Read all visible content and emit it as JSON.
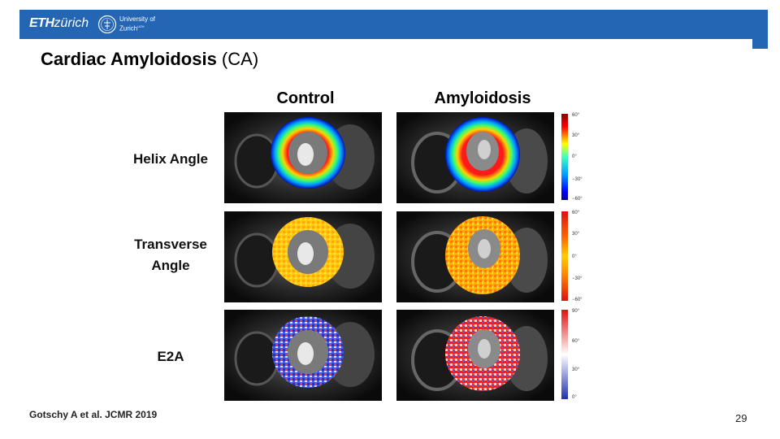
{
  "header": {
    "eth_bold": "ETH",
    "eth_italic": "zürich",
    "uzh_line1": "University of",
    "uzh_line2": "Zurich",
    "uzh_superscript": "UZH"
  },
  "slide": {
    "title_bold": "Cardiac Amyloidosis",
    "title_rest": " (CA)",
    "columns": [
      "Control",
      "Amyloidosis"
    ],
    "rows": [
      {
        "label_line1": "Helix Angle",
        "label_line2": ""
      },
      {
        "label_line1": "Transverse",
        "label_line2": "Angle"
      },
      {
        "label_line1": "E2A",
        "label_line2": ""
      }
    ],
    "colorbars": [
      {
        "name": "helix",
        "ticks": [
          "60°",
          "30°",
          "0°",
          "−30°",
          "−60°"
        ]
      },
      {
        "name": "transverse",
        "ticks": [
          "60°",
          "30°",
          "0°",
          "−30°",
          "−60°"
        ]
      },
      {
        "name": "e2a",
        "ticks": [
          "90°",
          "60°",
          "30°",
          "0°"
        ]
      }
    ],
    "citation": "Gotschy A et al. JCMR 2019",
    "page_number": "29"
  },
  "colors": {
    "header_bar": "#2466b3",
    "helix_map": [
      "#0000c8",
      "#00b4ff",
      "#ffff00",
      "#ff0000"
    ],
    "transverse_map": [
      "#ff8800",
      "#ffcc00",
      "#ffee44"
    ],
    "e2a_map": [
      "#3040d0",
      "#ffffff",
      "#e01010"
    ]
  }
}
